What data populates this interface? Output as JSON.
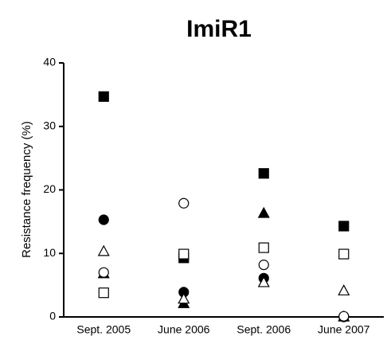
{
  "chart_data": {
    "type": "scatter",
    "title": "ImiR1",
    "y_label": "Resistance frequency (%)",
    "categories": [
      "Sept. 2005",
      "June 2006",
      "Sept. 2006",
      "June 2007"
    ],
    "ylim": [
      0,
      40
    ],
    "yticks": [
      0,
      10,
      20,
      30,
      40
    ],
    "grid": false,
    "series": [
      {
        "marker": "square",
        "filled": true,
        "color": "#000000",
        "values": [
          34.7,
          9.3,
          22.6,
          14.3
        ]
      },
      {
        "marker": "circle",
        "filled": true,
        "color": "#000000",
        "values": [
          15.3,
          3.9,
          6.1,
          0
        ]
      },
      {
        "marker": "triangle",
        "filled": true,
        "color": "#000000",
        "values": [
          6.8,
          2.1,
          16.3,
          0
        ]
      },
      {
        "marker": "square",
        "filled": false,
        "color": "#000000",
        "values": [
          3.8,
          9.9,
          10.9,
          9.9
        ]
      },
      {
        "marker": "circle",
        "filled": false,
        "color": "#000000",
        "values": [
          7.0,
          17.9,
          8.2,
          0.1
        ]
      },
      {
        "marker": "triangle",
        "filled": false,
        "color": "#000000",
        "values": [
          10.3,
          2.8,
          5.4,
          4.1
        ]
      }
    ]
  }
}
